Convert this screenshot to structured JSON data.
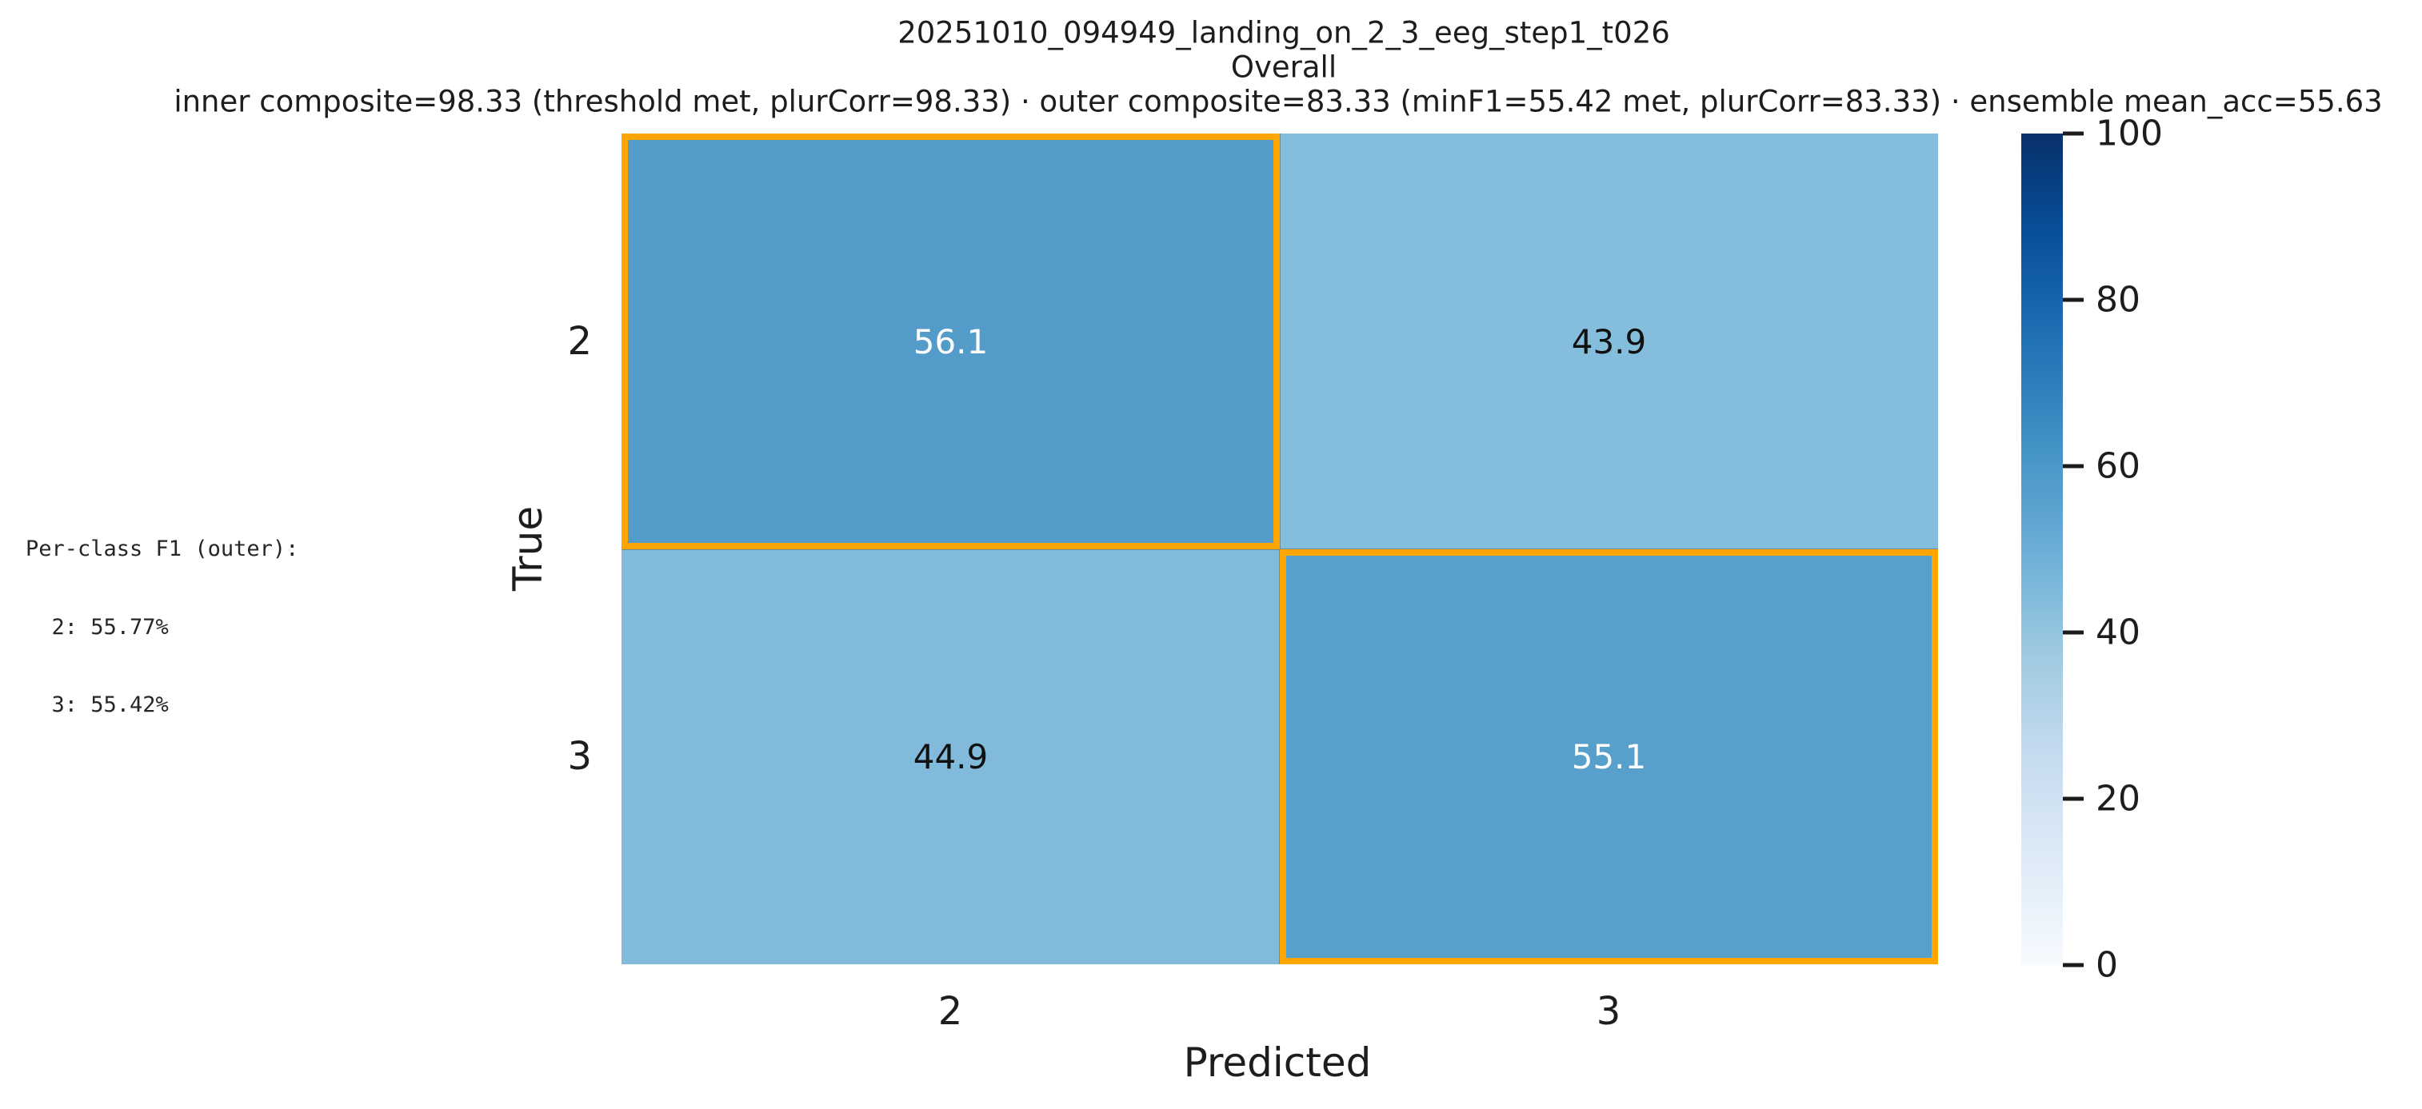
{
  "title": {
    "line1": "20251010_094949_landing_on_2_3_eeg_step1_t026",
    "line2": "Overall",
    "line3": "inner composite=98.33 (threshold met, plurCorr=98.33) · outer composite=83.33 (minF1=55.42 met, plurCorr=83.33) · ensemble mean_acc=55.63"
  },
  "side_text": {
    "line1": "Per-class F1 (outer):",
    "line2": "  2: 55.77%",
    "line3": "  3: 55.42%"
  },
  "axes": {
    "xlabel": "Predicted",
    "ylabel": "True",
    "x_ticks": [
      "2",
      "3"
    ],
    "y_ticks": [
      "2",
      "3"
    ]
  },
  "cells": [
    {
      "true": "2",
      "pred": "2",
      "value": "56.1",
      "color": "#539bc9",
      "text_color": "#fdfdfd",
      "highlighted": true
    },
    {
      "true": "2",
      "pred": "3",
      "value": "43.9",
      "color": "#85bddc",
      "text_color": "#111111",
      "highlighted": false
    },
    {
      "true": "3",
      "pred": "2",
      "value": "44.9",
      "color": "#81badb",
      "text_color": "#111111",
      "highlighted": false
    },
    {
      "true": "3",
      "pred": "3",
      "value": "55.1",
      "color": "#58a0cc",
      "text_color": "#fdfdfd",
      "highlighted": true
    }
  ],
  "colorbar": {
    "tick_labels": [
      "100",
      "80",
      "60",
      "40",
      "20",
      "0"
    ],
    "top_color": "#08306b",
    "bottom_color": "#f7fbff",
    "colormap": "Blues"
  },
  "colors": {
    "highlight_border": "#ffa500",
    "background": "#ffffff",
    "text": "#1d1d1d"
  },
  "chart_data": {
    "type": "heatmap",
    "title": "20251010_094949_landing_on_2_3_eeg_step1_t026",
    "subtitle": "Overall",
    "metrics_line": "inner composite=98.33 (threshold met, plurCorr=98.33) · outer composite=83.33 (minF1=55.42 met, plurCorr=83.33) · ensemble mean_acc=55.63",
    "xlabel": "Predicted",
    "ylabel": "True",
    "x_categories": [
      "2",
      "3"
    ],
    "y_categories": [
      "2",
      "3"
    ],
    "values": [
      [
        56.1,
        43.9
      ],
      [
        44.9,
        55.1
      ]
    ],
    "vmin": 0,
    "vmax": 100,
    "colormap": "Blues",
    "colorbar_ticks": [
      0,
      20,
      40,
      60,
      80,
      100
    ],
    "highlighted_cells": [
      [
        0,
        0
      ],
      [
        1,
        1
      ]
    ],
    "highlight_color": "#ffa500",
    "annotations": {
      "per_class_f1_outer": {
        "2": "55.77%",
        "3": "55.42%"
      }
    }
  }
}
